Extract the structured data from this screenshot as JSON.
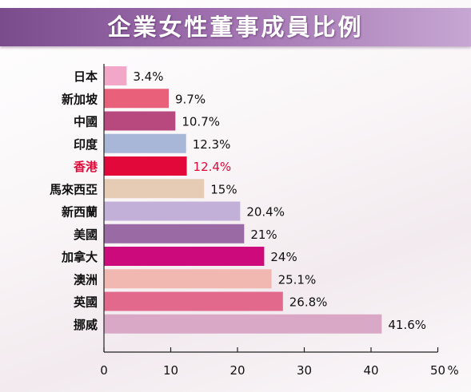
{
  "chart_data": {
    "type": "bar",
    "orientation": "horizontal",
    "title": "企業女性董事成員比例",
    "xlim": [
      0,
      50
    ],
    "x_ticks": [
      0,
      10,
      20,
      30,
      40,
      50
    ],
    "x_tick_labels": [
      "0",
      "10",
      "20",
      "30",
      "40",
      "50"
    ],
    "x_unit": "%",
    "grid": false,
    "categories": [
      "日本",
      "新加坡",
      "中國",
      "印度",
      "香港",
      "馬來西亞",
      "新西蘭",
      "美國",
      "加拿大",
      "澳洲",
      "英國",
      "挪威"
    ],
    "values": [
      3.4,
      9.7,
      10.7,
      12.3,
      12.4,
      15,
      20.4,
      21,
      24,
      25.1,
      26.8,
      41.6
    ],
    "value_labels": [
      "3.4%",
      "9.7%",
      "10.7%",
      "12.3%",
      "12.4%",
      "15%",
      "20.4%",
      "21%",
      "24%",
      "25.1%",
      "26.8%",
      "41.6%"
    ],
    "colors": [
      "#f2a6c8",
      "#e8607a",
      "#b8497e",
      "#a8b6d8",
      "#e2083a",
      "#e6ccb4",
      "#c2b0d8",
      "#9a6aa4",
      "#cc0a7c",
      "#f0b8b0",
      "#e2688c",
      "#d8a8c6"
    ],
    "highlight_category": "香港",
    "highlight_color": "#e2083a",
    "label_color": "#111111"
  }
}
